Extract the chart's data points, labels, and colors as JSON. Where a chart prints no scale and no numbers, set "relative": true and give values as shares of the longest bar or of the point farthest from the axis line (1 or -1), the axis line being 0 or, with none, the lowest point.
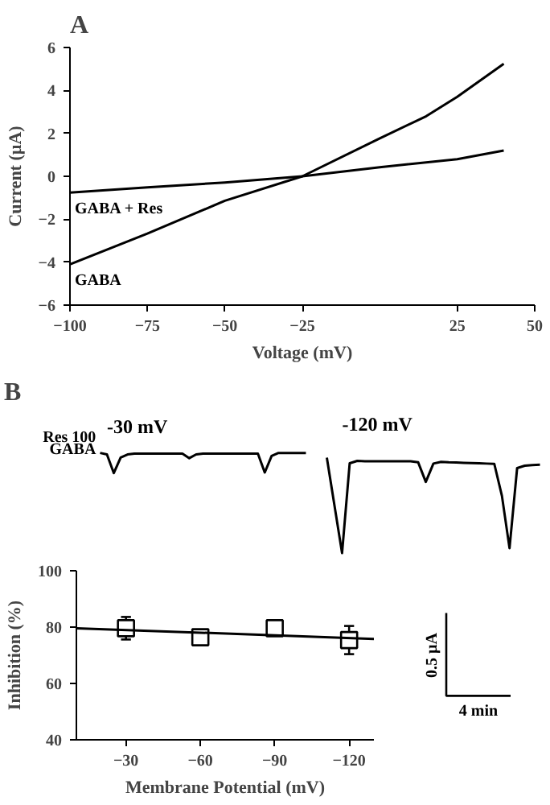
{
  "chart_data": [
    {
      "type": "line",
      "title": "A",
      "xlabel": "Voltage (mV)",
      "ylabel": "Current (µA)",
      "xlim": [
        -100,
        50
      ],
      "ylim": [
        -6,
        6
      ],
      "xticks": [
        -100,
        -75,
        -50,
        -25,
        25,
        50
      ],
      "yticks": [
        -6,
        -4,
        -2,
        0,
        2,
        4,
        6
      ],
      "grid": false,
      "series": [
        {
          "name": "GABA + Res",
          "color": "#000000",
          "x": [
            -100,
            -75,
            -50,
            -25,
            0,
            25,
            40
          ],
          "values": [
            -0.76,
            -0.52,
            -0.29,
            0,
            0.42,
            0.8,
            1.2
          ]
        },
        {
          "name": "GABA",
          "color": "#000000",
          "x": [
            -100,
            -75,
            -50,
            -25,
            0,
            15,
            25,
            40
          ],
          "values": [
            -4.1,
            -2.67,
            -1.14,
            0,
            1.77,
            2.8,
            3.7,
            5.24
          ]
        }
      ]
    },
    {
      "type": "line",
      "title": "B",
      "relative": true,
      "grid": false,
      "annotations": [
        "-30 mV",
        "Res 100",
        "GABA"
      ],
      "categories": [
        null,
        null,
        null,
        null,
        null,
        null,
        null,
        null,
        null,
        null,
        null,
        null,
        null,
        null,
        null,
        null,
        null,
        null,
        null,
        null,
        null,
        null,
        null,
        null,
        null,
        null,
        null,
        null,
        null,
        null,
        null
      ],
      "series": [
        {
          "color": "#000000",
          "values": [
            1.0,
            0.925,
            0,
            0.775,
            0.925,
            0.963,
            0.963,
            0.963,
            0.963,
            0.963,
            0.963,
            0.963,
            0.963,
            0.74,
            0.925,
            0.963,
            0.963,
            0.963,
            0.963,
            0.963,
            0.963,
            0.963,
            0.963,
            0.963,
            0.03,
            0.85,
            1.0,
            1.0,
            1.0,
            1.0,
            1.0
          ]
        }
      ]
    },
    {
      "type": "line",
      "relative": true,
      "grid": false,
      "annotations": [
        "-120 mV",
        "0.5 µA",
        "4 min"
      ],
      "categories": [
        null,
        null,
        null,
        null,
        null,
        null,
        null,
        null,
        null,
        null,
        null,
        null,
        null,
        null,
        null,
        null,
        null,
        null,
        null,
        null,
        null,
        null,
        null,
        null,
        null,
        null,
        null,
        null,
        null
      ],
      "series": [
        {
          "color": "#000000",
          "values": [
            1.0,
            0.5,
            0,
            0.94,
            0.965,
            0.962,
            0.962,
            0.962,
            0.962,
            0.962,
            0.962,
            0.962,
            0.95,
            0.745,
            0.937,
            0.955,
            0.95,
            0.948,
            0.945,
            0.942,
            0.94,
            0.937,
            0.934,
            0.6,
            0.052,
            0.89,
            0.915,
            0.922,
            0.925
          ]
        }
      ]
    },
    {
      "type": "scatter",
      "xlabel": "Membrane Potential (mV)",
      "ylabel": "Inhibition (%)",
      "xlim": [
        -10,
        -130
      ],
      "ylim": [
        40,
        100
      ],
      "xticks": [
        -30,
        -60,
        -90,
        -120
      ],
      "yticks": [
        40,
        60,
        80,
        100
      ],
      "grid": false,
      "series": [
        {
          "type": "scatter",
          "marker": "square",
          "color": "#000000",
          "x": [
            -30,
            -60,
            -90,
            -120
          ],
          "values": [
            79.6,
            76.4,
            79.6,
            75.4
          ],
          "errors": [
            4,
            2,
            2,
            5
          ]
        },
        {
          "type": "line",
          "color": "#000000",
          "x": [
            -10,
            -130
          ],
          "values": [
            79.6,
            75.8
          ]
        }
      ]
    }
  ]
}
